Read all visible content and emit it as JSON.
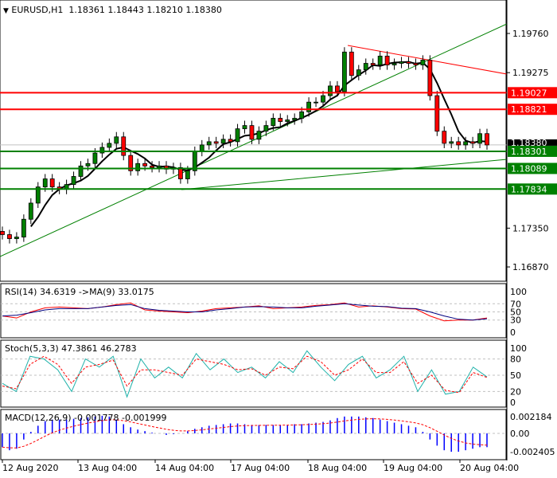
{
  "header": {
    "symbol": "EURUSD,H1",
    "open": "1.18361",
    "high": "1.18443",
    "low": "1.18210",
    "close": "1.18380"
  },
  "colors": {
    "bull": "#008000",
    "bear": "#ff0000",
    "support": "#008000",
    "resistance": "#ff0000",
    "ma": "#000000",
    "rsi": "#ff0000",
    "rsi_ma": "#000080",
    "stoch_k": "#20b2aa",
    "stoch_d": "#ff0000",
    "macd_hist": "#0000ff",
    "macd_signal": "#ff0000"
  },
  "chart_data": [
    {
      "type": "candlestick",
      "title": "EURUSD,H1",
      "ylim": [
        1.166,
        1.2015
      ],
      "price_ticks": [
        "1.19760",
        "1.19275",
        "1.17350",
        "1.16870"
      ],
      "current_price": "1.18380",
      "resistance_levels": [
        "1.19027",
        "1.18821"
      ],
      "support_levels": [
        "1.18301",
        "1.18089",
        "1.17834"
      ],
      "closes": [
        1.1727,
        1.1722,
        1.1724,
        1.1746,
        1.1766,
        1.1786,
        1.1796,
        1.1786,
        1.1783,
        1.1789,
        1.1799,
        1.1812,
        1.1815,
        1.1828,
        1.1835,
        1.184,
        1.1848,
        1.1825,
        1.1806,
        1.1815,
        1.1812,
        1.181,
        1.1812,
        1.1808,
        1.181,
        1.1796,
        1.1806,
        1.183,
        1.1838,
        1.1842,
        1.184,
        1.1845,
        1.1842,
        1.1858,
        1.1862,
        1.1845,
        1.1855,
        1.1862,
        1.1871,
        1.1867,
        1.1869,
        1.1871,
        1.1879,
        1.1891,
        1.1891,
        1.1899,
        1.1911,
        1.1904,
        1.1953,
        1.1924,
        1.1931,
        1.1939,
        1.1937,
        1.1948,
        1.1937,
        1.1939,
        1.1941,
        1.1939,
        1.1937,
        1.1943,
        1.1899,
        1.1855,
        1.184,
        1.1842,
        1.1838,
        1.1842,
        1.184,
        1.1852,
        1.1838
      ],
      "time_labels": [
        "12 Aug 2020",
        "13 Aug 04:00",
        "14 Aug 04:00",
        "17 Aug 04:00",
        "18 Aug 04:00",
        "19 Aug 04:00",
        "20 Aug 04:00"
      ]
    },
    {
      "type": "line",
      "title": "RSI(14) 34.6319  ->MA(9) 33.0175",
      "ylim": [
        0,
        100
      ],
      "ticks": [
        "100",
        "70",
        "50",
        "30",
        "0"
      ],
      "series": [
        {
          "name": "RSI(14)",
          "values": [
            40,
            35,
            50,
            60,
            62,
            60,
            58,
            62,
            68,
            72,
            55,
            52,
            50,
            48,
            52,
            58,
            60,
            62,
            65,
            58,
            60,
            62,
            66,
            68,
            72,
            62,
            65,
            62,
            58,
            57,
            40,
            28,
            30,
            30,
            35
          ]
        },
        {
          "name": "MA(9)",
          "values": [
            40,
            42,
            48,
            55,
            58,
            58,
            58,
            62,
            66,
            68,
            58,
            54,
            52,
            50,
            50,
            55,
            58,
            62,
            63,
            62,
            60,
            60,
            64,
            67,
            70,
            67,
            64,
            63,
            59,
            58,
            50,
            40,
            32,
            30,
            33
          ]
        }
      ]
    },
    {
      "type": "line",
      "title": "Stoch(5,3,3) 47.3861 46.2783",
      "ylim": [
        0,
        100
      ],
      "ticks": [
        "100",
        "80",
        "50",
        "20",
        "0"
      ],
      "series": [
        {
          "name": "%K",
          "values": [
            35,
            20,
            85,
            80,
            60,
            20,
            80,
            65,
            85,
            10,
            80,
            45,
            65,
            45,
            90,
            60,
            80,
            55,
            65,
            45,
            75,
            55,
            95,
            65,
            40,
            70,
            85,
            45,
            60,
            85,
            20,
            60,
            15,
            20,
            65,
            47
          ]
        },
        {
          "name": "%D",
          "values": [
            30,
            25,
            70,
            85,
            70,
            35,
            65,
            70,
            78,
            30,
            60,
            60,
            55,
            50,
            80,
            75,
            70,
            60,
            62,
            50,
            65,
            62,
            85,
            75,
            50,
            60,
            80,
            55,
            55,
            75,
            35,
            50,
            22,
            18,
            55,
            46
          ]
        }
      ]
    },
    {
      "type": "bar",
      "title": "MACD(12,26,9) -0.001778 -0.001999",
      "ylim": [
        -0.0026,
        0.0025
      ],
      "ticks": [
        "0.002184",
        "0.00",
        "-0.002405"
      ],
      "values": [
        -0.0018,
        -0.0022,
        -0.002,
        -0.0008,
        0.0002,
        0.001,
        0.0016,
        0.0018,
        0.0018,
        0.0018,
        0.0019,
        0.002,
        0.0021,
        0.0022,
        0.0023,
        0.0022,
        0.0018,
        0.0012,
        0.0008,
        0.0005,
        0.0003,
        0.0001,
        0.0,
        -0.0002,
        -0.0001,
        0.0,
        0.0003,
        0.0006,
        0.0008,
        0.001,
        0.0011,
        0.0012,
        0.0013,
        0.0013,
        0.0012,
        0.0011,
        0.0011,
        0.0011,
        0.0011,
        0.0011,
        0.0011,
        0.0012,
        0.0012,
        0.0013,
        0.0014,
        0.0015,
        0.0017,
        0.002,
        0.0022,
        0.0022,
        0.0022,
        0.0021,
        0.002,
        0.0018,
        0.0016,
        0.0014,
        0.0012,
        0.001,
        0.0008,
        0.0002,
        -0.0008,
        -0.0016,
        -0.0022,
        -0.0024,
        -0.0024,
        -0.0022,
        -0.002,
        -0.0018,
        -0.0018
      ]
    }
  ]
}
